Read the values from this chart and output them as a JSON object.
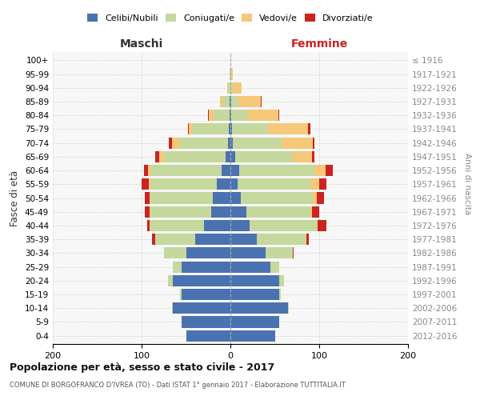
{
  "age_groups": [
    "0-4",
    "5-9",
    "10-14",
    "15-19",
    "20-24",
    "25-29",
    "30-34",
    "35-39",
    "40-44",
    "45-49",
    "50-54",
    "55-59",
    "60-64",
    "65-69",
    "70-74",
    "75-79",
    "80-84",
    "85-89",
    "90-94",
    "95-99",
    "100+"
  ],
  "birth_years": [
    "2012-2016",
    "2007-2011",
    "2002-2006",
    "1997-2001",
    "1992-1996",
    "1987-1991",
    "1982-1986",
    "1977-1981",
    "1972-1976",
    "1967-1971",
    "1962-1966",
    "1957-1961",
    "1952-1956",
    "1947-1951",
    "1942-1946",
    "1937-1941",
    "1932-1936",
    "1927-1931",
    "1922-1926",
    "1917-1921",
    "≤ 1916"
  ],
  "maschi": {
    "celibi": [
      50,
      55,
      65,
      55,
      65,
      55,
      50,
      40,
      30,
      22,
      20,
      15,
      10,
      5,
      3,
      2,
      1,
      1,
      0,
      0,
      0
    ],
    "coniugati": [
      0,
      0,
      1,
      2,
      5,
      10,
      25,
      45,
      60,
      68,
      70,
      75,
      80,
      70,
      55,
      40,
      18,
      8,
      3,
      1,
      0
    ],
    "vedovi": [
      0,
      0,
      0,
      0,
      0,
      0,
      0,
      0,
      1,
      1,
      1,
      2,
      3,
      5,
      8,
      5,
      5,
      3,
      1,
      0,
      0
    ],
    "divorziati": [
      0,
      0,
      0,
      0,
      0,
      0,
      0,
      3,
      3,
      5,
      5,
      8,
      4,
      5,
      3,
      1,
      1,
      0,
      0,
      0,
      0
    ]
  },
  "femmine": {
    "nubili": [
      50,
      55,
      65,
      55,
      55,
      45,
      40,
      30,
      22,
      18,
      12,
      8,
      10,
      5,
      3,
      2,
      1,
      1,
      0,
      0,
      0
    ],
    "coniugate": [
      0,
      0,
      1,
      2,
      5,
      10,
      30,
      55,
      75,
      72,
      80,
      82,
      85,
      65,
      55,
      40,
      18,
      8,
      3,
      1,
      0
    ],
    "vedove": [
      0,
      0,
      0,
      0,
      0,
      0,
      0,
      1,
      1,
      2,
      5,
      10,
      12,
      22,
      35,
      45,
      35,
      25,
      10,
      2,
      0
    ],
    "divorziate": [
      0,
      0,
      0,
      0,
      0,
      0,
      1,
      2,
      10,
      8,
      8,
      8,
      8,
      3,
      2,
      3,
      1,
      1,
      0,
      0,
      0
    ]
  },
  "colors": {
    "celibi_nubili": "#4a72b0",
    "coniugati": "#c5d89d",
    "vedovi": "#f5c87a",
    "divorziati": "#cc2222"
  },
  "xlim": 200,
  "title": "Popolazione per età, sesso e stato civile - 2017",
  "subtitle": "COMUNE DI BORGOFRANCO D'IVREA (TO) - Dati ISTAT 1° gennaio 2017 - Elaborazione TUTTITALIA.IT",
  "ylabel_left": "Fasce di età",
  "ylabel_right": "Anni di nascita",
  "xlabel_maschi": "Maschi",
  "xlabel_femmine": "Femmine",
  "legend_labels": [
    "Celibi/Nubili",
    "Coniugati/e",
    "Vedovi/e",
    "Divorziati/e"
  ],
  "background_color": "#ffffff",
  "plot_bg_color": "#f7f7f7",
  "grid_color": "#cccccc"
}
